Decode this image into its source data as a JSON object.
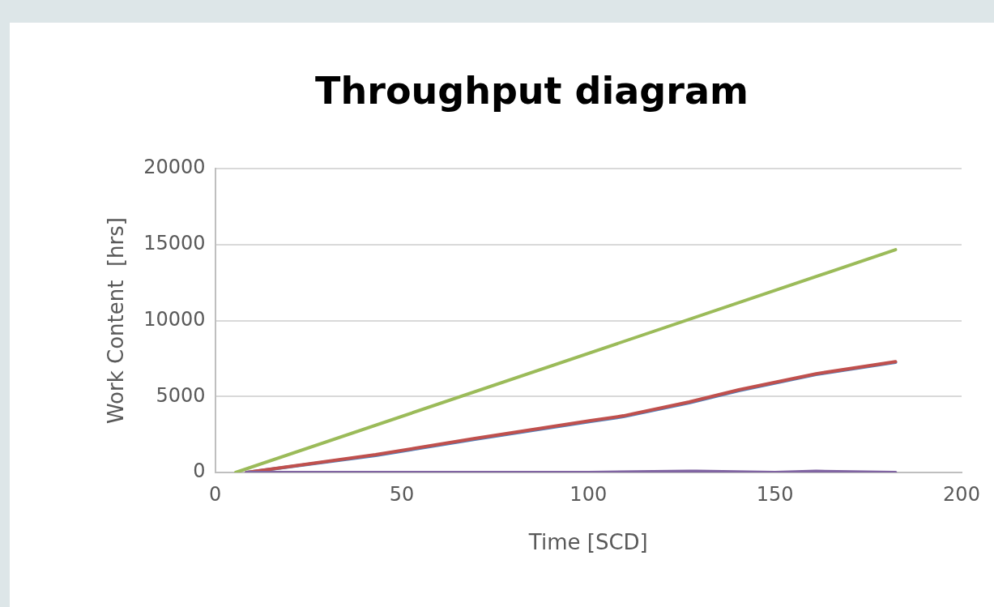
{
  "chart_data": {
    "type": "line",
    "title": "Throughput diagram",
    "xlabel": "Time [SCD]",
    "ylabel": "Work Content  [hrs]",
    "xlim": [
      0,
      200
    ],
    "xticks": [
      0,
      50,
      100,
      150,
      200
    ],
    "ylim": [
      0,
      20000
    ],
    "yticks": [
      0,
      5000,
      10000,
      15000,
      20000
    ],
    "grid": "y",
    "marker": "none",
    "series": [
      {
        "color": "#4f81bd",
        "x": [
          8.4,
          43,
          69.6,
          100.6,
          109.4,
          127,
          140.3,
          161,
          182.3
        ],
        "values": [
          0,
          1120,
          2190,
          3360,
          3680,
          4590,
          5390,
          6450,
          7250
        ]
      },
      {
        "color": "#c0504d",
        "x": [
          8.4,
          43,
          69.6,
          100.6,
          109.4,
          127,
          140.3,
          161,
          182.3
        ],
        "values": [
          0,
          1170,
          2240,
          3410,
          3730,
          4640,
          5440,
          6500,
          7300
        ]
      },
      {
        "color": "#9bbb59",
        "x": [
          5.5,
          182.3
        ],
        "values": [
          0,
          14670
        ]
      },
      {
        "color": "#8064a2",
        "x": [
          8.4,
          50,
          100,
          127,
          129,
          150,
          161,
          182.3
        ],
        "values": [
          0,
          0,
          0,
          80,
          80,
          0,
          80,
          0
        ]
      }
    ]
  }
}
